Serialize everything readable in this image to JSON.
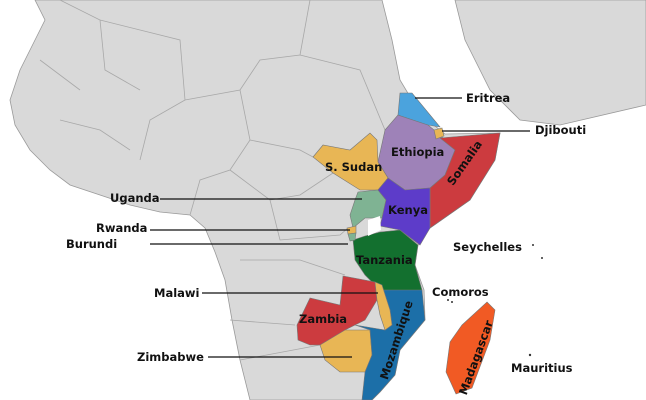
{
  "map": {
    "countries": [
      {
        "name": "Eritrea",
        "color": "#4ba3dd"
      },
      {
        "name": "Djibouti",
        "color": "#e8b655"
      },
      {
        "name": "Ethiopia",
        "color": "#9e82b8"
      },
      {
        "name": "Somalia",
        "color": "#cc3b3f"
      },
      {
        "name": "S. Sudan",
        "color": "#e8b655"
      },
      {
        "name": "Uganda",
        "color": "#7fb393"
      },
      {
        "name": "Kenya",
        "color": "#5d3cc9"
      },
      {
        "name": "Rwanda",
        "color": "#e8b655"
      },
      {
        "name": "Burundi",
        "color": "#7fb393"
      },
      {
        "name": "Tanzania",
        "color": "#13702f"
      },
      {
        "name": "Malawi",
        "color": "#e8b655"
      },
      {
        "name": "Zambia",
        "color": "#cc3b3f"
      },
      {
        "name": "Zimbabwe",
        "color": "#e8b655"
      },
      {
        "name": "Mozambique",
        "color": "#1c6fa8"
      },
      {
        "name": "Madagascar",
        "color": "#f15a24"
      },
      {
        "name": "Comoros",
        "color": "#333333"
      },
      {
        "name": "Seychelles",
        "color": "#333333"
      },
      {
        "name": "Mauritius",
        "color": "#333333"
      }
    ],
    "land_color": "#d9d9d9",
    "labels": {
      "eritrea": "Eritrea",
      "djibouti": "Djibouti",
      "ethiopia": "Ethiopia",
      "somalia": "Somalia",
      "s_sudan": "S. Sudan",
      "uganda": "Uganda",
      "kenya": "Kenya",
      "rwanda": "Rwanda",
      "burundi": "Burundi",
      "tanzania": "Tanzania",
      "seychelles": "Seychelles",
      "comoros": "Comoros",
      "malawi": "Malawi",
      "zambia": "Zambia",
      "zimbabwe": "Zimbabwe",
      "mozambique": "Mozambique",
      "madagascar": "Madagascar",
      "mauritius": "Mauritius"
    }
  }
}
